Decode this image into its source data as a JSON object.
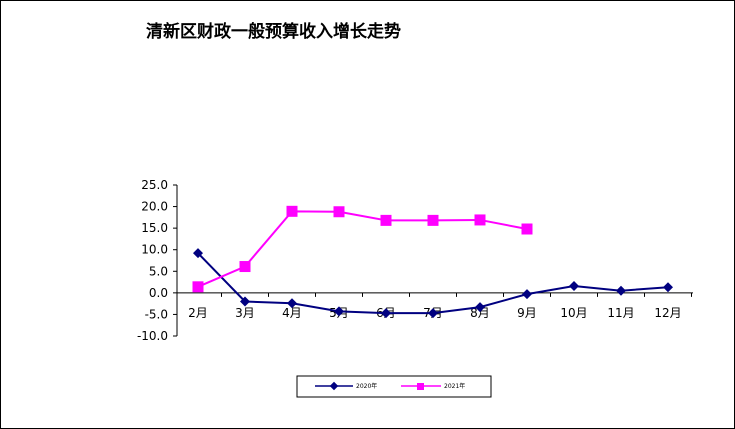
{
  "chart_data": {
    "type": "line",
    "title": "清新区财政一般预算收入增长走势",
    "xlabel": "",
    "ylabel": "",
    "categories": [
      "2月",
      "3月",
      "4月",
      "5月",
      "6月",
      "7月",
      "8月",
      "9月",
      "10月",
      "11月",
      "12月"
    ],
    "y_tick_labels": [
      "25.0",
      "20.0",
      "15.0",
      "10.0",
      "5.0",
      "0.0",
      "-5.0",
      "-10.0"
    ],
    "ylim": [
      -10,
      25
    ],
    "grid": false,
    "legend_position": "bottom",
    "series": [
      {
        "name": "2020年",
        "color": "#000080",
        "marker": "diamond",
        "values": [
          9.2,
          -2.0,
          -2.4,
          -4.3,
          -4.7,
          -4.7,
          -3.3,
          -0.3,
          1.6,
          0.5,
          1.3
        ]
      },
      {
        "name": "2021年",
        "color": "#ff00ff",
        "marker": "square",
        "values": [
          1.4,
          6.1,
          18.9,
          18.8,
          16.8,
          16.8,
          16.9,
          14.8,
          null,
          null,
          null
        ]
      }
    ]
  }
}
